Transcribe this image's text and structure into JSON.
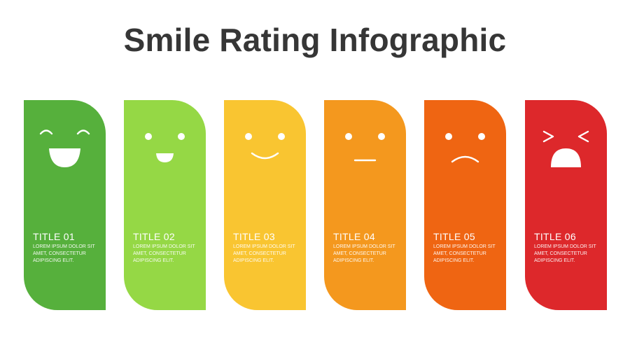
{
  "page": {
    "title": "Smile Rating Infographic"
  },
  "cards": [
    {
      "title": "TITLE 01",
      "desc": "LOREM IPSUM DOLOR SIT AMET, CONSECTETUR ADIPISCING ELIT.",
      "color": "#56B03C",
      "face": "laughing-face-icon"
    },
    {
      "title": "TITLE 02",
      "desc": "LOREM IPSUM DOLOR SIT AMET, CONSECTETUR ADIPISCING ELIT.",
      "color": "#95D845",
      "face": "happy-face-icon"
    },
    {
      "title": "TITLE 03",
      "desc": "LOREM IPSUM DOLOR SIT AMET, CONSECTETUR ADIPISCING ELIT.",
      "color": "#F9C531",
      "face": "smiling-face-icon"
    },
    {
      "title": "TITLE 04",
      "desc": "LOREM IPSUM DOLOR SIT AMET, CONSECTETUR ADIPISCING ELIT.",
      "color": "#F4981E",
      "face": "neutral-face-icon"
    },
    {
      "title": "TITLE 05",
      "desc": "LOREM IPSUM DOLOR SIT AMET, CONSECTETUR ADIPISCING ELIT.",
      "color": "#EF6512",
      "face": "sad-face-icon"
    },
    {
      "title": "TITLE 06",
      "desc": "LOREM IPSUM DOLOR SIT AMET, CONSECTETUR ADIPISCING ELIT.",
      "color": "#DD282B",
      "face": "crying-face-icon"
    }
  ]
}
